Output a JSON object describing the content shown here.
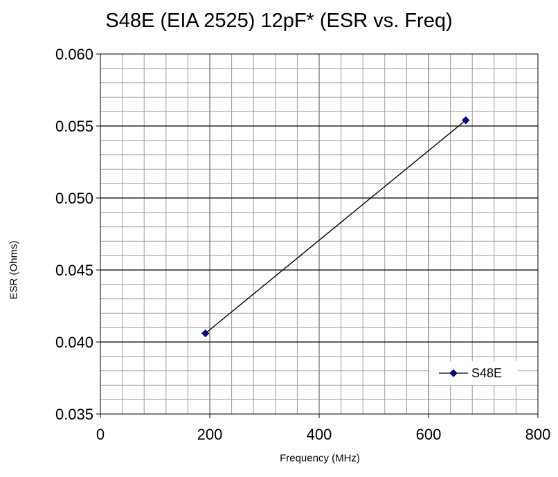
{
  "chart_data": {
    "type": "line",
    "title": "S48E (EIA 2525)  12pF* (ESR vs. Freq)",
    "xlabel": "Frequency (MHz)",
    "ylabel": "ESR (Ohms)",
    "xlim": [
      0,
      800
    ],
    "ylim": [
      0.035,
      0.06
    ],
    "x_ticks": [
      "0",
      "200",
      "400",
      "600",
      "800"
    ],
    "y_ticks": [
      "0.035",
      "0.040",
      "0.045",
      "0.050",
      "0.055",
      "0.060"
    ],
    "grid": true,
    "legend_position": "bottom-right",
    "series": [
      {
        "name": "S48E",
        "color": "#000080",
        "line_color": "#000000",
        "marker": "diamond",
        "x": [
          192,
          668
        ],
        "y": [
          0.0406,
          0.0554
        ]
      }
    ]
  }
}
